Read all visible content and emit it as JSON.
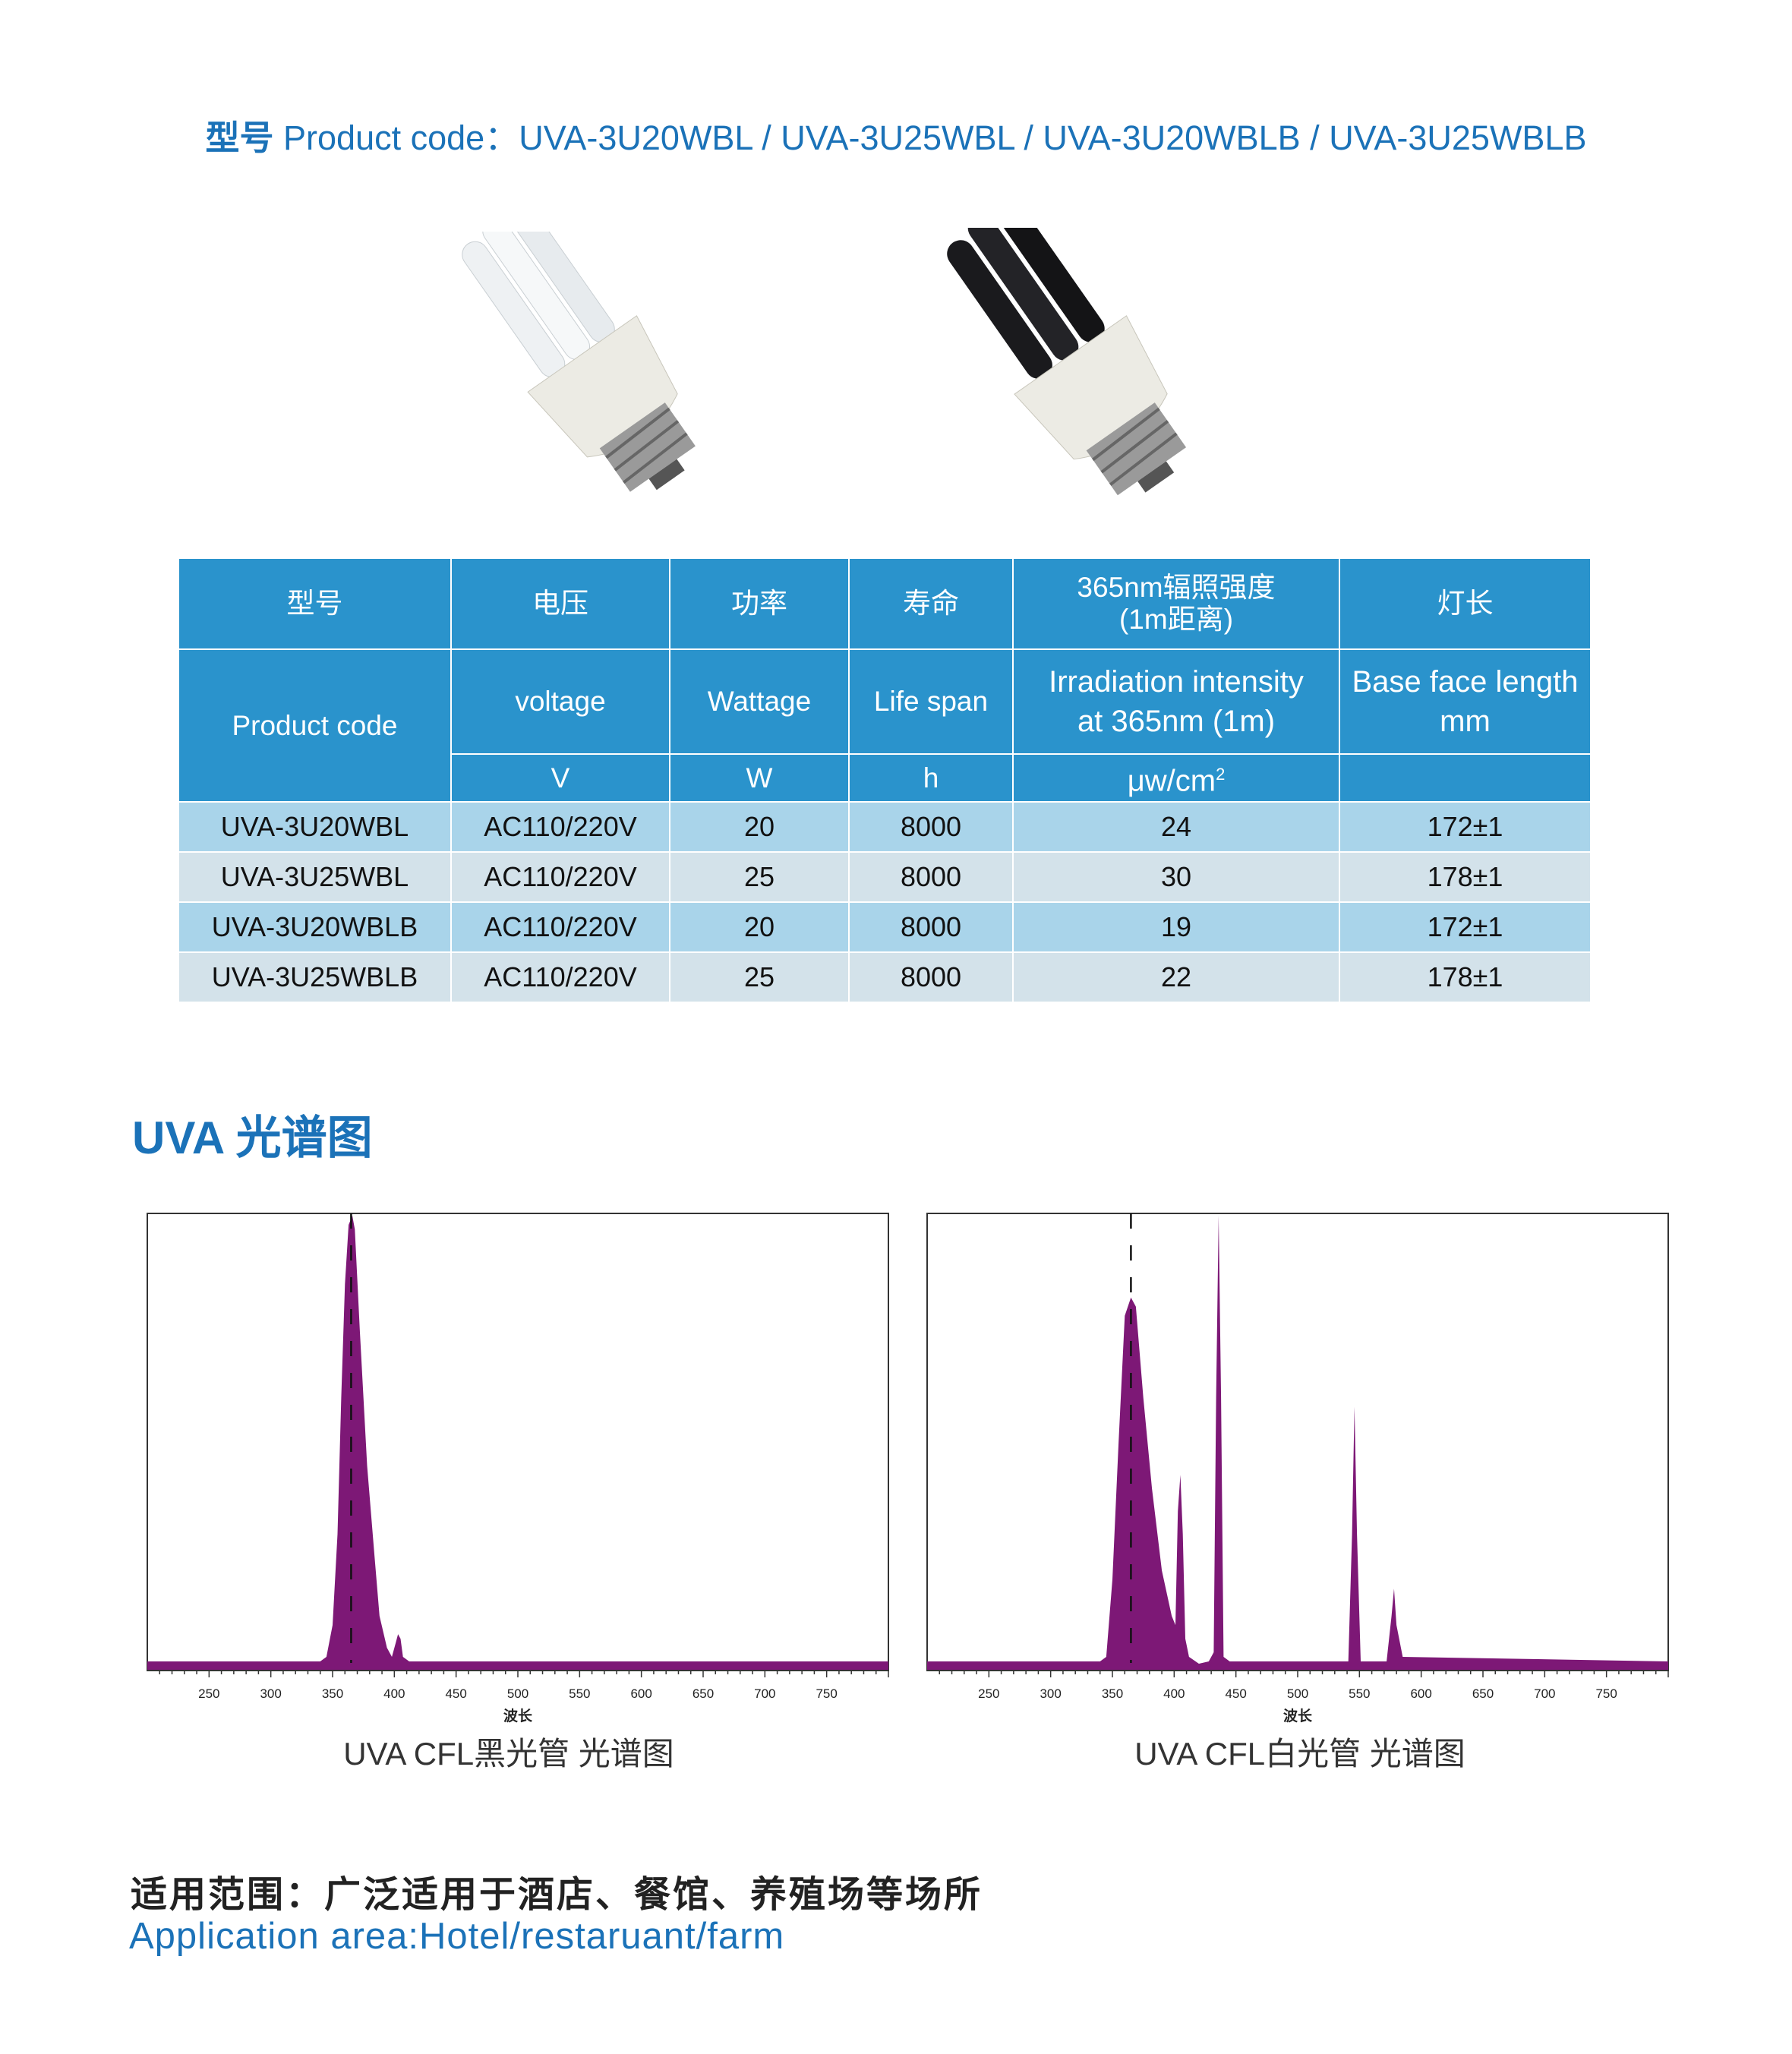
{
  "title": {
    "cn": "型号",
    "en": "Product  code：UVA-3U20WBL / UVA-3U25WBL / UVA-3U20WBLB / UVA-3U25WBLB"
  },
  "table": {
    "header_cn": [
      "型号",
      "电压",
      "功率",
      "寿命",
      "365nm辐照强度",
      "(1m距离)",
      "灯长"
    ],
    "header_en": [
      "Product  code",
      "voltage",
      "Wattage",
      "Life span",
      "Irradiation intensity",
      "at 365nm (1m)",
      "Base face length",
      "mm"
    ],
    "units": [
      "V",
      "W",
      "h",
      "μw/cm",
      "2",
      ""
    ],
    "rows": [
      [
        "UVA-3U20WBL",
        "AC110/220V",
        "20",
        "8000",
        "24",
        "172±1"
      ],
      [
        "UVA-3U25WBL",
        "AC110/220V",
        "25",
        "8000",
        "30",
        "178±1"
      ],
      [
        "UVA-3U20WBLB",
        "AC110/220V",
        "20",
        "8000",
        "19",
        "172±1"
      ],
      [
        "UVA-3U25WBLB",
        "AC110/220V",
        "25",
        "8000",
        "22",
        "178±1"
      ]
    ],
    "colors": {
      "header": "#2a93cc",
      "row_a": "#a9d4ea",
      "row_b": "#d3e2ea"
    }
  },
  "section_title": "UVA  光谱图",
  "chart_data": [
    {
      "type": "area",
      "caption": "UVA CFL黑光管  光谱图",
      "xlabel": "波长",
      "xlim": [
        200,
        800
      ],
      "ylim": [
        0,
        1
      ],
      "xticks": [
        250,
        300,
        350,
        400,
        450,
        500,
        550,
        600,
        650,
        700,
        750
      ],
      "marker_line": 365,
      "color": "#7d1876",
      "x": [
        200,
        340,
        345,
        350,
        354,
        357,
        360,
        363,
        366,
        368,
        372,
        378,
        384,
        388,
        394,
        398,
        401,
        403,
        405,
        407,
        412,
        800
      ],
      "y": [
        0.02,
        0.02,
        0.03,
        0.1,
        0.3,
        0.6,
        0.85,
        0.98,
        1.0,
        0.97,
        0.75,
        0.45,
        0.25,
        0.12,
        0.05,
        0.03,
        0.06,
        0.08,
        0.07,
        0.03,
        0.02,
        0.02
      ]
    },
    {
      "type": "area",
      "caption": "UVA CFL白光管  光谱图",
      "xlabel": "波长",
      "xlim": [
        200,
        800
      ],
      "ylim": [
        0,
        1
      ],
      "xticks": [
        250,
        300,
        350,
        400,
        450,
        500,
        550,
        600,
        650,
        700,
        750
      ],
      "marker_line": 365,
      "color": "#7d1876",
      "x": [
        200,
        340,
        345,
        350,
        355,
        360,
        365,
        369,
        375,
        382,
        390,
        398,
        401,
        403,
        405,
        407,
        409,
        412,
        420,
        428,
        432,
        434,
        436,
        438,
        440,
        445,
        541,
        544,
        546,
        548,
        551,
        572,
        576,
        578,
        580,
        585,
        800
      ],
      "y": [
        0.02,
        0.02,
        0.03,
        0.2,
        0.5,
        0.78,
        0.82,
        0.8,
        0.6,
        0.4,
        0.22,
        0.12,
        0.1,
        0.35,
        0.43,
        0.3,
        0.07,
        0.03,
        0.015,
        0.02,
        0.04,
        0.6,
        1.0,
        0.6,
        0.03,
        0.02,
        0.02,
        0.3,
        0.58,
        0.3,
        0.02,
        0.02,
        0.12,
        0.18,
        0.1,
        0.03,
        0.02
      ]
    }
  ],
  "application": {
    "cn": "适用范围：广泛适用于酒店、餐馆、养殖场等场所",
    "en": "Application area:Hotel/restaruant/farm"
  }
}
